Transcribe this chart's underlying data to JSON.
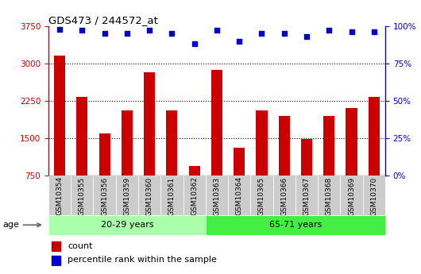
{
  "title": "GDS473 / 244572_at",
  "categories": [
    "GSM10354",
    "GSM10355",
    "GSM10356",
    "GSM10359",
    "GSM10360",
    "GSM10361",
    "GSM10362",
    "GSM10363",
    "GSM10364",
    "GSM10365",
    "GSM10366",
    "GSM10367",
    "GSM10368",
    "GSM10369",
    "GSM10370"
  ],
  "counts": [
    3150,
    2330,
    1600,
    2050,
    2820,
    2050,
    940,
    2870,
    1300,
    2050,
    1950,
    1480,
    1950,
    2100,
    2320
  ],
  "percentile_ranks": [
    98,
    97,
    95,
    95,
    97,
    95,
    88,
    97,
    90,
    95,
    95,
    93,
    97,
    96,
    96
  ],
  "group1_label": "20-29 years",
  "group2_label": "65-71 years",
  "group1_count": 7,
  "group2_count": 8,
  "ylim_left": [
    750,
    3750
  ],
  "ylim_right": [
    0,
    100
  ],
  "yticks_left": [
    750,
    1500,
    2250,
    3000,
    3750
  ],
  "yticks_right": [
    0,
    25,
    50,
    75,
    100
  ],
  "bar_color": "#cc0000",
  "dot_color": "#0000cc",
  "group1_bg": "#aaffaa",
  "group2_bg": "#44ee44",
  "plot_bg": "#ffffff",
  "xtick_bg": "#cccccc",
  "legend_bar_label": "count",
  "legend_dot_label": "percentile rank within the sample",
  "grid_yticks": [
    1500,
    2250,
    3000
  ]
}
